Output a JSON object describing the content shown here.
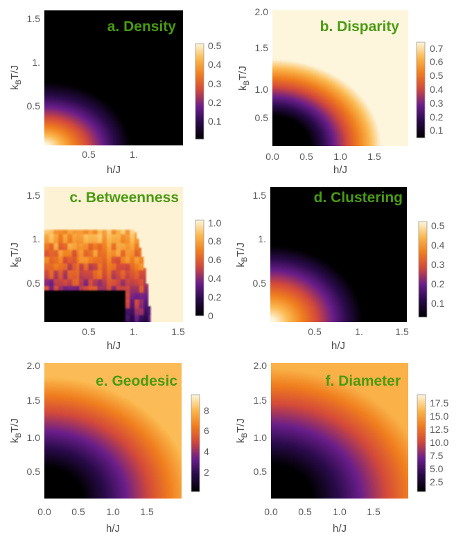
{
  "colors": {
    "title": "#4a9a12",
    "axis": "#5a5a5a",
    "colormap": "inferno-like (black, purple, orange, cream)"
  },
  "chart_data": [
    {
      "type": "heatmap",
      "id": "a",
      "title": "a. Density",
      "xlabel": "h/J",
      "ylabel": "k_B T/J",
      "xlim": [
        0,
        1.55
      ],
      "ylim": [
        0,
        1.55
      ],
      "xticks": [
        "0.5",
        "1."
      ],
      "yticks": [
        "0.5",
        "1.",
        "1.5"
      ],
      "colorbar": {
        "range": [
          0.02,
          0.5
        ],
        "ticks": [
          "0.1",
          "0.2",
          "0.3",
          "0.4",
          "0.5"
        ]
      }
    },
    {
      "type": "heatmap",
      "id": "b",
      "title": "b. Disparity",
      "xlabel": "h/J",
      "ylabel": "k_B T/J",
      "xlim": [
        0,
        2.0
      ],
      "ylim": [
        0,
        2.0
      ],
      "xticks": [
        "0.0",
        "0.5",
        "1.0",
        "1.5"
      ],
      "yticks": [
        "0.5",
        "1.0",
        "1.5",
        "2.0"
      ],
      "colorbar": {
        "range": [
          0.05,
          0.75
        ],
        "ticks": [
          "0.1",
          "0.2",
          "0.3",
          "0.4",
          "0.5",
          "0.6",
          "0.7"
        ]
      }
    },
    {
      "type": "heatmap",
      "id": "c",
      "title": "c. Betweenness",
      "xlabel": "h/J",
      "ylabel": "k_B T/J",
      "xlim": [
        0,
        1.55
      ],
      "ylim": [
        0,
        1.55
      ],
      "xticks": [
        "0.5",
        "1.",
        "1.5"
      ],
      "yticks": [
        "0.5",
        "1.",
        "1.5"
      ],
      "colorbar": {
        "range": [
          0,
          1.0
        ],
        "ticks": [
          "0",
          "0.2",
          "0.4",
          "0.6",
          "0.8",
          "1.0"
        ]
      }
    },
    {
      "type": "heatmap",
      "id": "d",
      "title": "d. Clustering",
      "xlabel": "h/J",
      "ylabel": "k_B T/J",
      "xlim": [
        0,
        1.55
      ],
      "ylim": [
        0,
        1.55
      ],
      "xticks": [
        "0.5",
        "1.",
        "1.5"
      ],
      "yticks": [
        "0.5",
        "1.",
        "1.5"
      ],
      "colorbar": {
        "range": [
          0.02,
          0.5
        ],
        "ticks": [
          "0.1",
          "0.2",
          "0.3",
          "0.4",
          "0.5"
        ]
      }
    },
    {
      "type": "heatmap",
      "id": "e",
      "title": "e. Geodesic",
      "xlabel": "h/J",
      "ylabel": "k_B T/J",
      "xlim": [
        0,
        2.0
      ],
      "ylim": [
        0,
        2.0
      ],
      "xticks": [
        "0.0",
        "0.5",
        "1.0",
        "1.5"
      ],
      "yticks": [
        "0.5",
        "1.0",
        "1.5",
        "2.0"
      ],
      "colorbar": {
        "range": [
          0,
          9.5
        ],
        "ticks": [
          "2",
          "4",
          "6",
          "8"
        ]
      }
    },
    {
      "type": "heatmap",
      "id": "f",
      "title": "f. Diameter",
      "xlabel": "h/J",
      "ylabel": "k_B T/J",
      "xlim": [
        0,
        2.0
      ],
      "ylim": [
        0,
        2.0
      ],
      "xticks": [
        "0.0",
        "0.5",
        "1.0",
        "1.5"
      ],
      "yticks": [
        "0.5",
        "1.0",
        "1.5",
        "2.0"
      ],
      "colorbar": {
        "range": [
          1,
          19
        ],
        "ticks": [
          "2.5",
          "5.0",
          "7.5",
          "10.0",
          "12.5",
          "15.0",
          "17.5"
        ]
      }
    }
  ]
}
